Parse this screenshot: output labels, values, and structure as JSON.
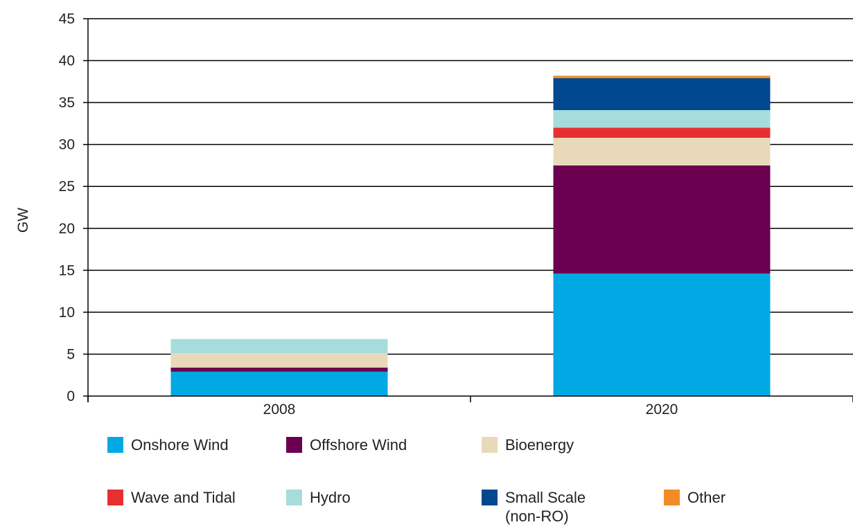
{
  "chart_data": {
    "type": "bar",
    "stacked": true,
    "title": "",
    "xlabel": "",
    "ylabel": "GW",
    "ylim": [
      0,
      45
    ],
    "yticks": [
      "0",
      "5",
      "10",
      "15",
      "20",
      "25",
      "30",
      "35",
      "40",
      "45"
    ],
    "grid": "horizontal",
    "legend_position": "bottom",
    "categories": [
      "2008",
      "2020"
    ],
    "series": [
      {
        "name": "Onshore Wind",
        "color": "#00a9e4",
        "values": [
          2.9,
          14.6
        ]
      },
      {
        "name": "Offshore Wind",
        "color": "#6b0050",
        "values": [
          0.5,
          12.9
        ]
      },
      {
        "name": "Bioenergy",
        "color": "#e8d9bb",
        "values": [
          1.7,
          3.3
        ]
      },
      {
        "name": "Wave and Tidal",
        "color": "#e63030",
        "values": [
          0.0,
          1.2
        ]
      },
      {
        "name": "Hydro",
        "color": "#a6dcdc",
        "values": [
          1.7,
          2.1
        ]
      },
      {
        "name": "Small Scale\n(non-RO)",
        "color": "#004990",
        "values": [
          0.0,
          3.8
        ]
      },
      {
        "name": "Other",
        "color": "#f28c28",
        "values": [
          0.0,
          0.3
        ]
      }
    ]
  }
}
